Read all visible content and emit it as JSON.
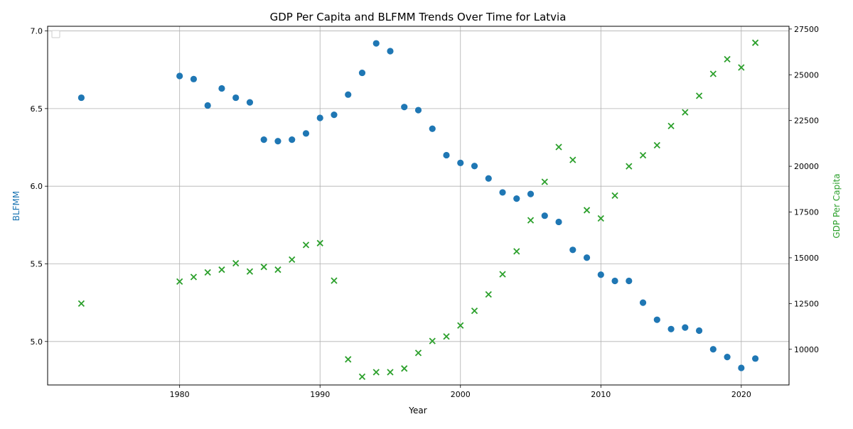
{
  "chart_data": {
    "type": "scatter",
    "title": "GDP Per Capita and BLFMM Trends Over Time for Latvia",
    "xlabel": "Year",
    "ylabel_left": "BLFMM",
    "ylabel_right": "GDP Per Capita",
    "xlim": [
      1970.6,
      2023.4
    ],
    "ylim_left": [
      4.72,
      7.03
    ],
    "ylim_right": [
      8050,
      27650
    ],
    "x_ticks": [
      1980,
      1990,
      2000,
      2010,
      2020
    ],
    "y_left_ticks": [
      5.0,
      5.5,
      6.0,
      6.5,
      7.0
    ],
    "y_right_ticks": [
      10000,
      12500,
      15000,
      17500,
      20000,
      22500,
      25000,
      27500
    ],
    "grid": true,
    "legend": "top-left (empty)",
    "series": [
      {
        "name": "BLFMM",
        "marker": "circle",
        "color": "#1f77b4",
        "axis": "left",
        "points": [
          [
            1973,
            6.57
          ],
          [
            1980,
            6.71
          ],
          [
            1981,
            6.69
          ],
          [
            1982,
            6.52
          ],
          [
            1983,
            6.63
          ],
          [
            1984,
            6.57
          ],
          [
            1985,
            6.54
          ],
          [
            1986,
            6.3
          ],
          [
            1987,
            6.29
          ],
          [
            1988,
            6.3
          ],
          [
            1989,
            6.34
          ],
          [
            1990,
            6.44
          ],
          [
            1991,
            6.46
          ],
          [
            1992,
            6.59
          ],
          [
            1993,
            6.73
          ],
          [
            1994,
            6.92
          ],
          [
            1995,
            6.87
          ],
          [
            1996,
            6.51
          ],
          [
            1997,
            6.49
          ],
          [
            1998,
            6.37
          ],
          [
            1999,
            6.2
          ],
          [
            2000,
            6.15
          ],
          [
            2001,
            6.13
          ],
          [
            2002,
            6.05
          ],
          [
            2003,
            5.96
          ],
          [
            2004,
            5.92
          ],
          [
            2005,
            5.95
          ],
          [
            2006,
            5.81
          ],
          [
            2007,
            5.77
          ],
          [
            2008,
            5.59
          ],
          [
            2009,
            5.54
          ],
          [
            2010,
            5.43
          ],
          [
            2011,
            5.39
          ],
          [
            2012,
            5.39
          ],
          [
            2013,
            5.25
          ],
          [
            2014,
            5.14
          ],
          [
            2015,
            5.08
          ],
          [
            2016,
            5.09
          ],
          [
            2017,
            5.07
          ],
          [
            2018,
            4.95
          ],
          [
            2019,
            4.9
          ],
          [
            2020,
            4.83
          ],
          [
            2021,
            4.89
          ]
        ]
      },
      {
        "name": "GDP Per Capita",
        "marker": "x",
        "color": "#2ca02c",
        "axis": "right",
        "points": [
          [
            1973,
            12500
          ],
          [
            1980,
            13700
          ],
          [
            1981,
            13950
          ],
          [
            1982,
            14200
          ],
          [
            1983,
            14350
          ],
          [
            1984,
            14700
          ],
          [
            1985,
            14250
          ],
          [
            1986,
            14500
          ],
          [
            1987,
            14350
          ],
          [
            1988,
            14900
          ],
          [
            1989,
            15700
          ],
          [
            1990,
            15800
          ],
          [
            1991,
            13750
          ],
          [
            1992,
            9450
          ],
          [
            1993,
            8500
          ],
          [
            1994,
            8750
          ],
          [
            1995,
            8750
          ],
          [
            1996,
            8950
          ],
          [
            1997,
            9800
          ],
          [
            1998,
            10450
          ],
          [
            1999,
            10700
          ],
          [
            2000,
            11300
          ],
          [
            2001,
            12100
          ],
          [
            2002,
            13000
          ],
          [
            2003,
            14100
          ],
          [
            2004,
            15350
          ],
          [
            2005,
            17050
          ],
          [
            2006,
            19150
          ],
          [
            2007,
            21050
          ],
          [
            2008,
            20350
          ],
          [
            2009,
            17600
          ],
          [
            2010,
            17150
          ],
          [
            2011,
            18400
          ],
          [
            2012,
            20000
          ],
          [
            2013,
            20600
          ],
          [
            2014,
            21150
          ],
          [
            2015,
            22200
          ],
          [
            2016,
            22950
          ],
          [
            2017,
            23850
          ],
          [
            2018,
            25050
          ],
          [
            2019,
            25850
          ],
          [
            2020,
            25400
          ],
          [
            2021,
            26750
          ]
        ]
      }
    ]
  }
}
